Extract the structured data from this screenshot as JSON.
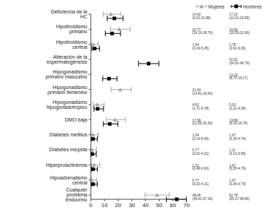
{
  "chart_data": {
    "type": "forest",
    "orientation": "horizontal",
    "grid": false,
    "legend": "upper right",
    "categories": [
      "Deficiencia de la HC",
      "Hipotiroidismo primario",
      "Hipotiroidismo central",
      "Alteración de la espermatogénesis",
      "Hipogonadismo primario masculino",
      "Hipogonadismo primario femenino",
      "Hipogonadismo hipogonadotrópico",
      "DMO baja",
      "Diabetes mellitus",
      "Diabetes insípida",
      "Hiperprolactinemia",
      "Hipoadrenalismo central",
      "Cualquier problema endocrino"
    ],
    "xlim": [
      0,
      70
    ],
    "xticks": [
      0,
      10,
      20,
      30,
      40,
      50,
      60,
      70
    ],
    "series": [
      {
        "name": "Mujeres",
        "color": "#a6a6a6",
        "marker": "triangle",
        "values": [
          14.62,
          20.77,
          1.54,
          null,
          null,
          21.54,
          4.62,
          17.69,
          1.54,
          0.77,
          2.31,
          0.77,
          48.46
        ],
        "ci_low": [
          9.03,
          14.16,
          0.19,
          null,
          null,
          14.81,
          1.71,
          11.56,
          0.19,
          0.02,
          0.48,
          0.02,
          39.61
        ],
        "ci_high": [
          21.88,
          28.76,
          5.45,
          null,
          null,
          29.6,
          9.78,
          25.35,
          5.45,
          4.21,
          6.6,
          4.21,
          57.39
        ],
        "value_labels": [
          "14,62 (9,03-21,88)",
          "20,77 (14,16-28,76)",
          "1,54 (0,19-5,45)",
          null,
          null,
          "21,54 (14,81-29,60)",
          "4,62 (1,71-9,78)",
          "17,69 (11,56-25,35)",
          "1,54 (0,19-5,45)",
          "0,77 (0,02-4,21)",
          "2,31 (0,48-6,60)",
          "0,77 (0,02-4,21)",
          "48,46 (39,61-57,39)"
        ]
      },
      {
        "name": "Hombres",
        "color": "#000000",
        "marker": "square",
        "values": [
          17.22,
          15.56,
          2.78,
          42.22,
          13.33,
          null,
          5.0,
          13.89,
          1.67,
          1.11,
          1.67,
          1.67,
          62.78
        ],
        "ci_low": [
          12.01,
          10.59,
          0.91,
          34.91,
          8.73,
          null,
          2.31,
          9.19,
          0.35,
          0.13,
          0.35,
          0.35,
          55.27
        ],
        "ci_high": [
          23.55,
          21.69,
          6.36,
          49.79,
          19.17,
          null,
          9.28,
          19.76,
          4.79,
          3.96,
          4.79,
          4.79,
          69.85
        ],
        "value_labels": [
          "17,22 (12,01-23,55)",
          "15,56 (10,59-21,69)",
          "2,78 (0,91-6,36)",
          "42,22 (34,91-49,79)",
          "13,33 (8,73-19,17)",
          null,
          "5,00 (2,31-9,28)",
          "13,89 (9,19-19,76)",
          "1,67 (0,35-4,79)",
          "1,11 (0,13-3,96)",
          "1,67 (0,35-4,79)",
          "1,67 (0,35-4,79)",
          "62,78 (55,27-69,85)"
        ]
      }
    ]
  }
}
